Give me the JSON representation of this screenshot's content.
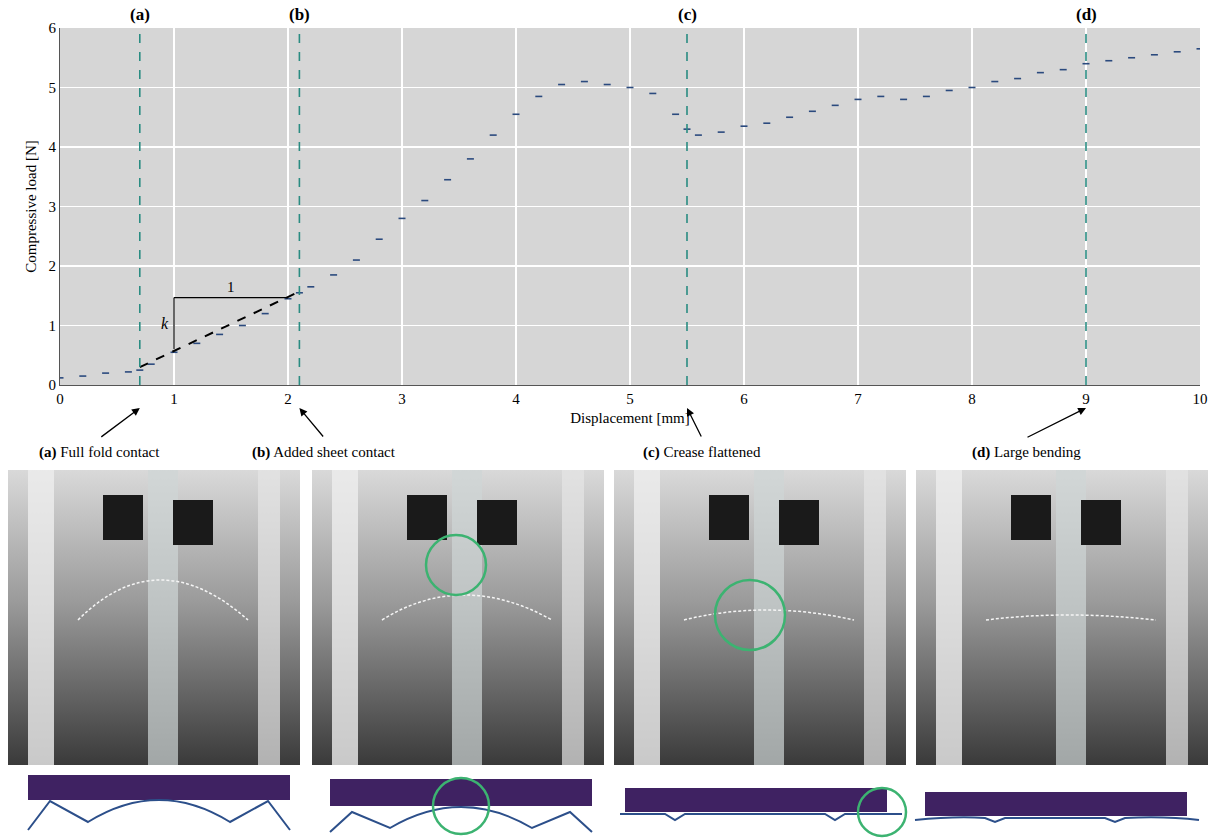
{
  "chart_data": {
    "type": "scatter",
    "xlabel": "Displacement [mm]",
    "ylabel": "Compressive load [N]",
    "xlim": [
      0,
      10
    ],
    "ylim": [
      0,
      6
    ],
    "xticks": [
      0,
      1,
      2,
      3,
      4,
      5,
      6,
      7,
      8,
      9,
      10
    ],
    "yticks": [
      0,
      1,
      2,
      3,
      4,
      5,
      6
    ],
    "grid": true,
    "series": [
      {
        "color": "#2b4a7e",
        "marker": "line-ew",
        "x": [
          0,
          0.2,
          0.4,
          0.6,
          0.7,
          0.8,
          1.0,
          1.2,
          1.4,
          1.6,
          1.8,
          2.0,
          2.1,
          2.2,
          2.4,
          2.6,
          2.8,
          3.0,
          3.2,
          3.4,
          3.6,
          3.8,
          4.0,
          4.2,
          4.4,
          4.6,
          4.8,
          5.0,
          5.2,
          5.4,
          5.5,
          5.6,
          5.8,
          6.0,
          6.2,
          6.4,
          6.6,
          6.8,
          7.0,
          7.2,
          7.4,
          7.6,
          7.8,
          8.0,
          8.2,
          8.4,
          8.6,
          8.8,
          9.0,
          9.2,
          9.4,
          9.6,
          9.8,
          10.0
        ],
        "values": [
          0.12,
          0.15,
          0.2,
          0.22,
          0.25,
          0.35,
          0.55,
          0.7,
          0.85,
          1.0,
          1.2,
          1.45,
          1.55,
          1.65,
          1.85,
          2.1,
          2.45,
          2.8,
          3.1,
          3.45,
          3.8,
          4.2,
          4.55,
          4.85,
          5.05,
          5.1,
          5.05,
          5.0,
          4.9,
          4.55,
          4.3,
          4.2,
          4.25,
          4.35,
          4.4,
          4.5,
          4.6,
          4.7,
          4.8,
          4.85,
          4.8,
          4.85,
          4.95,
          5.0,
          5.1,
          5.15,
          5.25,
          5.3,
          5.4,
          5.45,
          5.5,
          5.55,
          5.6,
          5.65
        ]
      },
      {
        "color": "#000000",
        "line_style": "dash",
        "x": [
          0.7,
          2.1
        ],
        "values": [
          0.3,
          1.57
        ]
      }
    ],
    "slope_triangle": {
      "x": [
        1,
        2
      ],
      "y": [
        0.6,
        1.47
      ],
      "run_label": "1",
      "rise_label": "k"
    },
    "events": [
      {
        "x": 0.7,
        "label": "(a)",
        "caption": "Full fold contact"
      },
      {
        "x": 2.1,
        "label": "(b)",
        "caption": "Added sheet contact"
      },
      {
        "x": 5.5,
        "label": "(c)",
        "caption": "Crease flattened"
      },
      {
        "x": 9.0,
        "label": "(d)",
        "caption": "Large bending"
      }
    ]
  }
}
